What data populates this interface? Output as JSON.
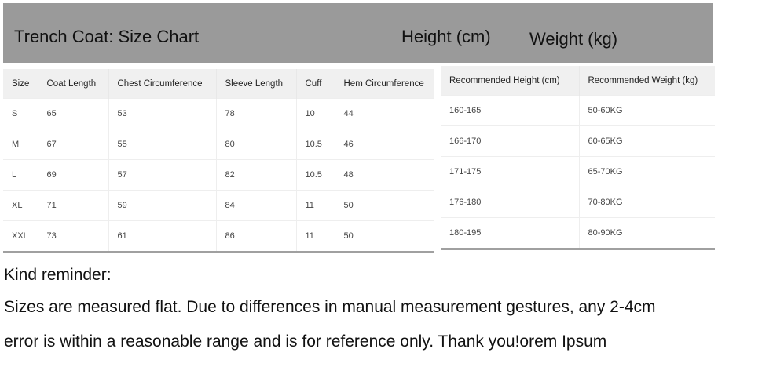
{
  "banner": {
    "title": "Trench Coat: Size Chart",
    "height_label": "Height (cm)",
    "weight_label": "Weight (kg)",
    "color": "#9a9a9a"
  },
  "size_table": {
    "headers": [
      "Size",
      "Coat Length",
      "Chest Circumference",
      "Sleeve Length",
      "Cuff",
      "Hem Circumference"
    ],
    "rows": [
      [
        "S",
        "65",
        "53",
        "78",
        "10",
        "44"
      ],
      [
        "M",
        "67",
        "55",
        "80",
        "10.5",
        "46"
      ],
      [
        "L",
        "69",
        "57",
        "82",
        "10.5",
        "48"
      ],
      [
        "XL",
        "71",
        "59",
        "84",
        "11",
        "50"
      ],
      [
        "XXL",
        "73",
        "61",
        "86",
        "11",
        "50"
      ]
    ]
  },
  "rec_table": {
    "headers": [
      "Recommended Height (cm)",
      "Recommended Weight (kg)"
    ],
    "rows": [
      [
        "160-165",
        "50-60KG"
      ],
      [
        "166-170",
        "60-65KG"
      ],
      [
        "171-175",
        "65-70KG"
      ],
      [
        "176-180",
        "70-80KG"
      ],
      [
        "180-195",
        "80-90KG"
      ]
    ]
  },
  "notes": {
    "heading": "Kind reminder:",
    "line1": "Sizes are measured flat. Due to differences in manual measurement gestures, any 2-4cm",
    "line2": "error is within a reasonable range and is for reference only. Thank you!orem Ipsum"
  }
}
